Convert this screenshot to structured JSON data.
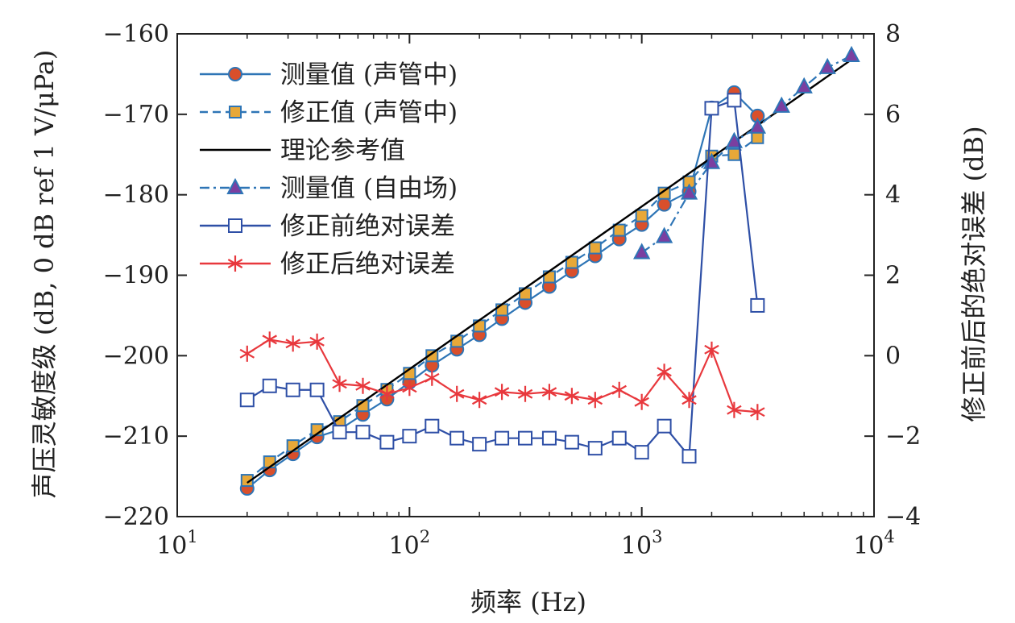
{
  "chart_data": {
    "type": "line",
    "xlabel": "频率 (Hz)",
    "ylabel_left": "声压灵敏度级 (dB, 0 dB ref 1 V/μPa)",
    "ylabel_right": "修正前后的绝对误差 (dB)",
    "x_scale": "log",
    "xlim": [
      10,
      10000
    ],
    "ylim_left": [
      -220,
      -160
    ],
    "ylim_right": [
      -4,
      8
    ],
    "x_ticks": [
      {
        "value": 10,
        "base": "10",
        "exp": "1"
      },
      {
        "value": 100,
        "base": "10",
        "exp": "2"
      },
      {
        "value": 1000,
        "base": "10",
        "exp": "3"
      },
      {
        "value": 10000,
        "base": "10",
        "exp": "4"
      }
    ],
    "y_ticks_left": [
      "−160",
      "−170",
      "−180",
      "−190",
      "−200",
      "−210",
      "−220"
    ],
    "y_ticks_left_values": [
      -160,
      -170,
      -180,
      -190,
      -200,
      -210,
      -220
    ],
    "y_ticks_right": [
      "8",
      "6",
      "4",
      "2",
      "0",
      "−2",
      "−4"
    ],
    "y_ticks_right_values": [
      8,
      6,
      4,
      2,
      0,
      -2,
      -4
    ],
    "grid": false,
    "legend_position": "top-left",
    "series": [
      {
        "name": "测量值 (声管中)",
        "axis": "left",
        "color": "#2e75b6",
        "marker": "circle",
        "marker_fill": "#d94f2b",
        "dash": "solid",
        "x": [
          20,
          25,
          31.5,
          40,
          50,
          63,
          80,
          100,
          125,
          160,
          200,
          250,
          315,
          400,
          500,
          630,
          800,
          1000,
          1250,
          1600,
          2000,
          2500,
          3150
        ],
        "y": [
          -216.5,
          -214.2,
          -212.2,
          -210.1,
          -209.2,
          -207.3,
          -205.4,
          -203.3,
          -201.2,
          -199.2,
          -197.4,
          -195.4,
          -193.4,
          -191.4,
          -189.5,
          -187.6,
          -185.5,
          -183.7,
          -181.2,
          -179.6,
          -169.2,
          -167.3,
          -170.2
        ]
      },
      {
        "name": "修正值 (声管中)",
        "axis": "left",
        "color": "#2e75b6",
        "marker": "square",
        "marker_fill": "#e8a838",
        "dash": "dashed",
        "x": [
          20,
          25,
          31.5,
          40,
          50,
          63,
          80,
          100,
          125,
          160,
          200,
          250,
          315,
          400,
          500,
          630,
          800,
          1000,
          1250,
          1600,
          2000,
          2500,
          3150
        ],
        "y": [
          -215.5,
          -213.2,
          -211.2,
          -209.2,
          -208.2,
          -206.2,
          -204.2,
          -202.2,
          -200.0,
          -198.2,
          -196.3,
          -194.3,
          -192.3,
          -190.2,
          -188.4,
          -186.6,
          -184.4,
          -182.6,
          -179.8,
          -178.4,
          -175.2,
          -175.0,
          -172.9
        ]
      },
      {
        "name": "理论参考值",
        "axis": "left",
        "color": "#000000",
        "marker": "none",
        "dash": "solid",
        "x": [
          20,
          8000
        ],
        "y": [
          -215.8,
          -163.2
        ]
      },
      {
        "name": "测量值 (自由场)",
        "axis": "left",
        "color": "#2e75b6",
        "marker": "triangle",
        "marker_fill": "#7b3fa0",
        "dash": "dashdot",
        "x": [
          1000,
          1250,
          1600,
          2000,
          2500,
          3150,
          4000,
          5000,
          6300,
          8000
        ],
        "y": [
          -187.2,
          -185.2,
          -179.8,
          -176.0,
          -173.4,
          -171.6,
          -169.0,
          -166.6,
          -164.2,
          -162.7
        ]
      },
      {
        "name": "修正前绝对误差",
        "axis": "right",
        "color": "#2e4fa6",
        "marker": "open-square",
        "dash": "solid",
        "x": [
          20,
          25,
          31.5,
          40,
          50,
          63,
          80,
          100,
          125,
          160,
          200,
          250,
          315,
          400,
          500,
          630,
          800,
          1000,
          1250,
          1600,
          2000,
          2500,
          3150
        ],
        "y": [
          -1.1,
          -0.75,
          -0.85,
          -0.85,
          -1.9,
          -1.9,
          -2.15,
          -2.0,
          -1.75,
          -2.05,
          -2.2,
          -2.05,
          -2.05,
          -2.05,
          -2.15,
          -2.3,
          -2.05,
          -2.4,
          -1.75,
          -2.5,
          6.15,
          6.35,
          1.25
        ]
      },
      {
        "name": "修正后绝对误差",
        "axis": "right",
        "color": "#e8383d",
        "marker": "asterisk",
        "dash": "solid",
        "x": [
          20,
          25,
          31.5,
          40,
          50,
          63,
          80,
          100,
          125,
          160,
          200,
          250,
          315,
          400,
          500,
          630,
          800,
          1000,
          1250,
          1600,
          2000,
          2500,
          3150
        ],
        "y": [
          0.05,
          0.4,
          0.3,
          0.35,
          -0.7,
          -0.75,
          -0.95,
          -0.8,
          -0.55,
          -0.95,
          -1.1,
          -0.9,
          -0.95,
          -0.9,
          -1.0,
          -1.1,
          -0.85,
          -1.15,
          -0.4,
          -1.1,
          0.15,
          -1.35,
          -1.4
        ]
      }
    ]
  }
}
